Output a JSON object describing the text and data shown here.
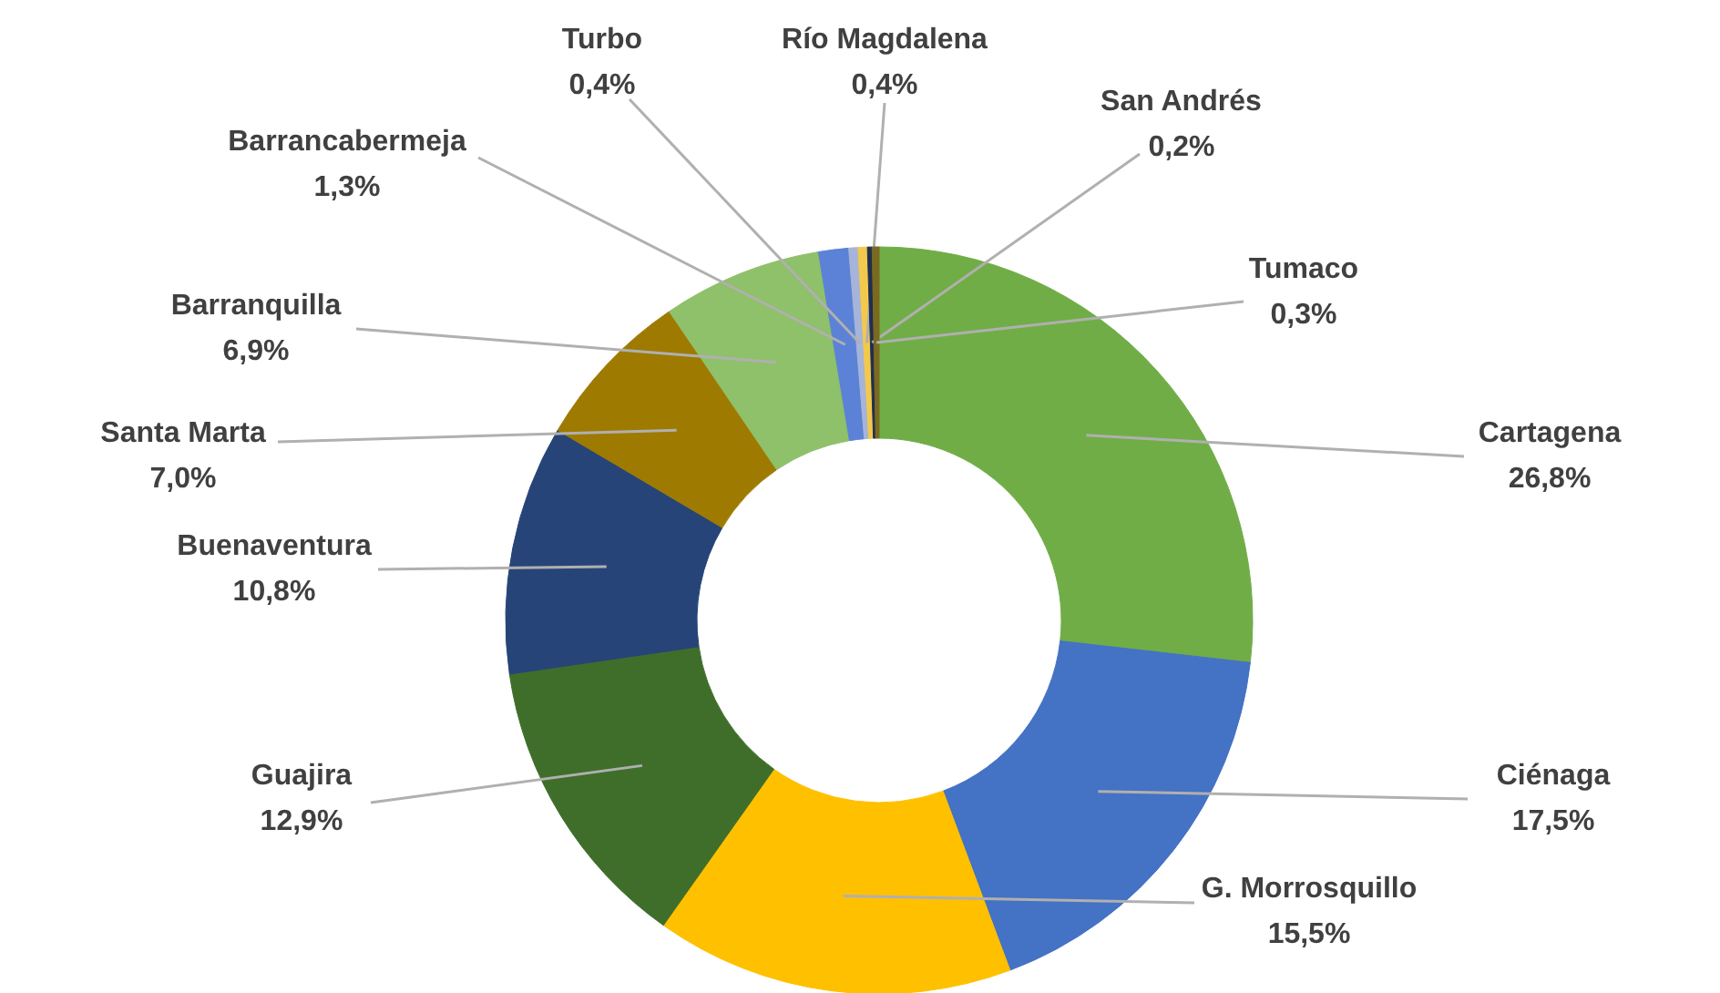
{
  "chart_data": {
    "type": "donut",
    "categories": [
      "Cartagena",
      "Ciénaga",
      "G. Morrosquillo",
      "Guajira",
      "Buenaventura",
      "Santa Marta",
      "Barranquilla",
      "Barrancabermeja",
      "Turbo",
      "Río Magdalena",
      "San Andrés",
      "Tumaco"
    ],
    "values": [
      26.8,
      17.5,
      15.5,
      12.9,
      10.8,
      7.0,
      6.9,
      1.3,
      0.4,
      0.4,
      0.2,
      0.3
    ],
    "colors": [
      "#70ad47",
      "#4472c4",
      "#ffc000",
      "#3f6e2a",
      "#264478",
      "#9e7a00",
      "#8fc06a",
      "#5b82d6",
      "#a5b4d8",
      "#f2c94c",
      "#1f2f4f",
      "#7a6a1f"
    ],
    "value_labels": [
      "26,8%",
      "17,5%",
      "15,5%",
      "12,9%",
      "10,8%",
      "7,0%",
      "6,9%",
      "1,3%",
      "0,4%",
      "0,4%",
      "0,2%",
      "0,3%"
    ]
  }
}
